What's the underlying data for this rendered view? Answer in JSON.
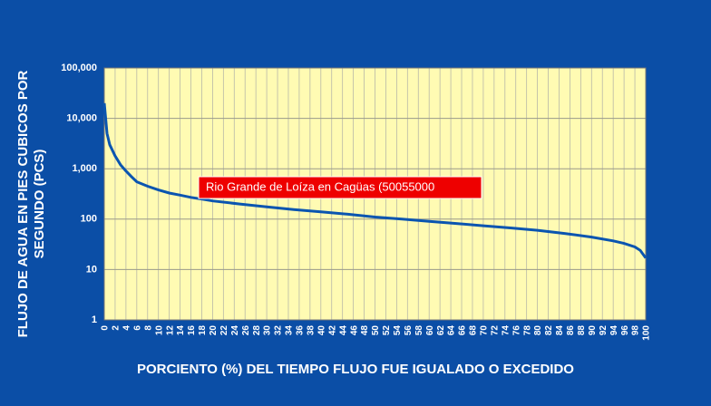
{
  "chart_data": {
    "type": "line",
    "log_y": true,
    "grid": true,
    "x_label": "PORCIENTO (%) DEL TIEMPO FLUJO FUE IGUALADO O EXCEDIDO",
    "y_label": [
      "FLUJO DE AGUA EN PIES CUBICOS POR",
      "SEGUNDO (PCS)"
    ],
    "annotation": "Rio Grande de Loíza en Cagüas (50055000",
    "color": "#0b55b0",
    "x": [
      0,
      0.5,
      1,
      2,
      3,
      4,
      5,
      6,
      8,
      10,
      12,
      14,
      16,
      18,
      20,
      25,
      30,
      35,
      40,
      45,
      50,
      55,
      60,
      65,
      70,
      75,
      80,
      85,
      90,
      94,
      96,
      98,
      99,
      100
    ],
    "values": [
      20000,
      5000,
      3000,
      1800,
      1200,
      900,
      700,
      550,
      450,
      380,
      330,
      300,
      270,
      250,
      230,
      200,
      175,
      155,
      140,
      125,
      110,
      100,
      90,
      82,
      74,
      67,
      60,
      52,
      44,
      37,
      33,
      28,
      24,
      17
    ],
    "xlim": [
      0,
      100
    ],
    "xticks": [
      0,
      2,
      4,
      6,
      8,
      10,
      12,
      14,
      16,
      18,
      20,
      22,
      24,
      26,
      28,
      30,
      32,
      34,
      36,
      38,
      40,
      42,
      44,
      46,
      48,
      50,
      52,
      54,
      56,
      58,
      60,
      62,
      64,
      66,
      68,
      70,
      72,
      74,
      76,
      78,
      80,
      82,
      84,
      86,
      88,
      90,
      92,
      94,
      96,
      98,
      100
    ],
    "ylim": [
      1,
      100000
    ],
    "yticks": [
      1,
      10,
      100,
      {
        "value": 1000,
        "label": "1,000"
      },
      {
        "value": 10000,
        "label": "10,000"
      },
      {
        "value": 100000,
        "label": "100,000"
      }
    ]
  }
}
